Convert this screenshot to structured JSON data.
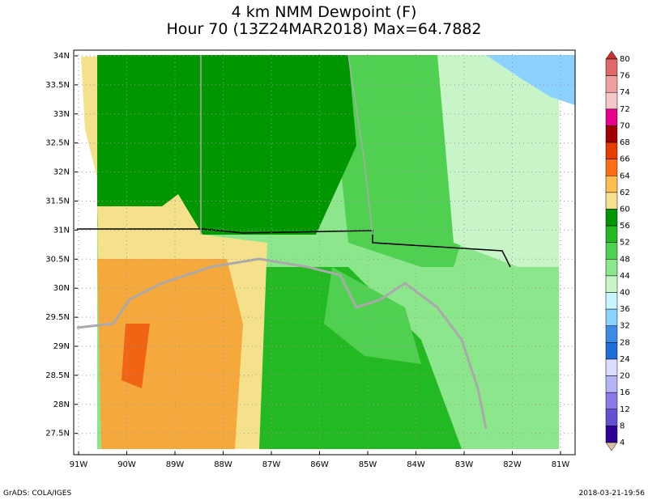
{
  "title": {
    "line1": "4 km NMM Dewpoint (F)",
    "line2": "Hour 70 (13Z24MAR2018) Max=64.7882"
  },
  "map": {
    "lat_labels": [
      "34N",
      "33.5N",
      "33N",
      "32.5N",
      "32N",
      "31.5N",
      "31N",
      "30.5N",
      "30N",
      "29.5N",
      "29N",
      "28.5N",
      "28N",
      "27.5N"
    ],
    "lon_labels": [
      "91W",
      "90W",
      "89W",
      "88W",
      "87W",
      "86W",
      "85W",
      "84W",
      "83W",
      "82W",
      "81W"
    ]
  },
  "colorbar": {
    "levels": [
      80,
      76,
      74,
      72,
      70,
      68,
      66,
      64,
      62,
      60,
      56,
      52,
      48,
      44,
      40,
      36,
      32,
      28,
      24,
      20,
      16,
      12,
      8,
      4
    ]
  },
  "footer": {
    "left": "GrADS: COLA/IGES",
    "right": "2018-03-21-19:56"
  }
}
